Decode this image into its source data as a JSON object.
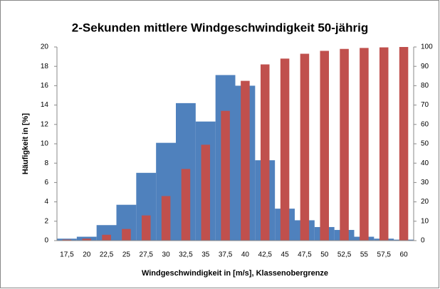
{
  "chart_data": {
    "type": "bar",
    "title": "2-Sekunden mittlere Windgeschwindigkeit  50-jährig",
    "x_label": "Windgeschwindigkeit  in [m/s], Klassenobergrenze",
    "y_label": "Häufigkeit  in [%]",
    "categories": [
      "17,5",
      "20",
      "22,5",
      "25",
      "27,5",
      "30",
      "32,5",
      "35",
      "37,5",
      "40",
      "42,5",
      "45",
      "47,5",
      "50",
      "52,5",
      "55",
      "57,5",
      "60"
    ],
    "series": [
      {
        "color": "#4f81bd",
        "values": [
          0.2,
          0.4,
          1.6,
          3.7,
          7.0,
          10.1,
          14.2,
          12.3,
          17.1,
          16.0,
          8.3,
          3.3,
          2.1,
          1.4,
          1.1,
          0.4,
          0.2,
          0.1
        ]
      },
      {
        "color": "#c0504d",
        "axis": "y2",
        "values": [
          0.5,
          1,
          3,
          6,
          13,
          23,
          37,
          49.5,
          67,
          82.5,
          91,
          94,
          96.5,
          98,
          99,
          99.5,
          99.8,
          100
        ]
      }
    ],
    "ylim": [
      0,
      20
    ],
    "yticks": [
      0,
      2,
      4,
      6,
      8,
      10,
      12,
      14,
      16,
      18,
      20
    ],
    "y2lim": [
      0,
      100
    ],
    "y2ticks": [
      0,
      10,
      20,
      30,
      40,
      50,
      60,
      70,
      80,
      90,
      100
    ]
  }
}
